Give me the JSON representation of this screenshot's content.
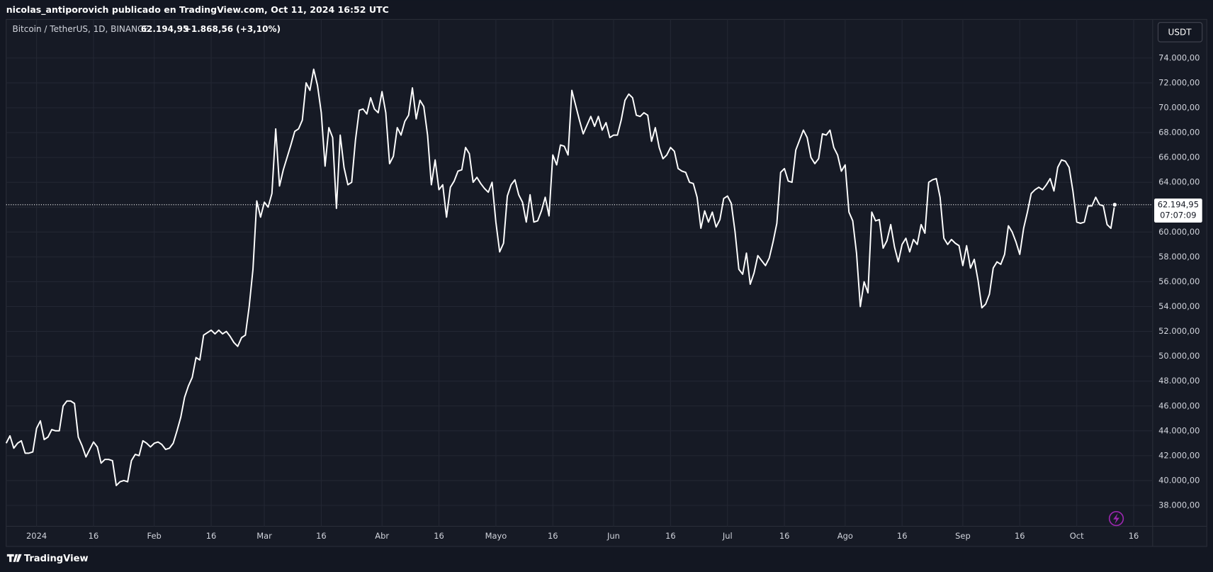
{
  "header": "nicolas_antiporovich publicado en TradingView.com, Oct 11, 2024 16:52 UTC",
  "currency_button": "USDT",
  "countdown": "07:07:09",
  "brand": "TradingView",
  "chart_data": {
    "type": "line",
    "legend": {
      "price": "62.194,95",
      "change": "+1.868,56 (+3,10%)"
    },
    "grid": true,
    "ylim": [
      34760,
      77110
    ],
    "yticks": [
      {
        "value": 38000,
        "label": "38.000,00"
      },
      {
        "value": 40000,
        "label": "40.000,00"
      },
      {
        "value": 42000,
        "label": "42.000,00"
      },
      {
        "value": 44000,
        "label": "44.000,00"
      },
      {
        "value": 46000,
        "label": "46.000,00"
      },
      {
        "value": 48000,
        "label": "48.000,00"
      },
      {
        "value": 50000,
        "label": "50.000,00"
      },
      {
        "value": 52000,
        "label": "52.000,00"
      },
      {
        "value": 54000,
        "label": "54.000,00"
      },
      {
        "value": 56000,
        "label": "56.000,00"
      },
      {
        "value": 58000,
        "label": "58.000,00"
      },
      {
        "value": 60000,
        "label": "60.000,00"
      },
      {
        "value": 62000,
        "label": "62.000,00"
      },
      {
        "value": 64000,
        "label": "64.000,00"
      },
      {
        "value": 66000,
        "label": "66.000,00"
      },
      {
        "value": 68000,
        "label": "68.000,00"
      },
      {
        "value": 70000,
        "label": "70.000,00"
      },
      {
        "value": 72000,
        "label": "72.000,00"
      },
      {
        "value": 74000,
        "label": "74.000,00"
      }
    ],
    "xlim": [
      "2023-12-24",
      "2024-10-21"
    ],
    "xticks": [
      {
        "value": "2024-01-01",
        "label": "2024"
      },
      {
        "value": "2024-01-16",
        "label": "16"
      },
      {
        "value": "2024-02-01",
        "label": "Feb"
      },
      {
        "value": "2024-02-16",
        "label": "16"
      },
      {
        "value": "2024-03-01",
        "label": "Mar"
      },
      {
        "value": "2024-03-16",
        "label": "16"
      },
      {
        "value": "2024-04-01",
        "label": "Abr"
      },
      {
        "value": "2024-04-16",
        "label": "16"
      },
      {
        "value": "2024-05-01",
        "label": "Mayo"
      },
      {
        "value": "2024-05-16",
        "label": "16"
      },
      {
        "value": "2024-06-01",
        "label": "Jun"
      },
      {
        "value": "2024-06-16",
        "label": "16"
      },
      {
        "value": "2024-07-01",
        "label": "Jul"
      },
      {
        "value": "2024-07-16",
        "label": "16"
      },
      {
        "value": "2024-08-01",
        "label": "Ago"
      },
      {
        "value": "2024-08-16",
        "label": "16"
      },
      {
        "value": "2024-09-01",
        "label": "Sep"
      },
      {
        "value": "2024-09-16",
        "label": "16"
      },
      {
        "value": "2024-10-01",
        "label": "Oct"
      },
      {
        "value": "2024-10-16",
        "label": "16"
      }
    ],
    "x": [
      "2023-12-24",
      "2023-12-25",
      "2023-12-26",
      "2023-12-27",
      "2023-12-28",
      "2023-12-29",
      "2023-12-30",
      "2023-12-31",
      "2024-01-01",
      "2024-01-02",
      "2024-01-03",
      "2024-01-04",
      "2024-01-05",
      "2024-01-06",
      "2024-01-07",
      "2024-01-08",
      "2024-01-09",
      "2024-01-10",
      "2024-01-11",
      "2024-01-12",
      "2024-01-13",
      "2024-01-14",
      "2024-01-15",
      "2024-01-16",
      "2024-01-17",
      "2024-01-18",
      "2024-01-19",
      "2024-01-20",
      "2024-01-21",
      "2024-01-22",
      "2024-01-23",
      "2024-01-24",
      "2024-01-25",
      "2024-01-26",
      "2024-01-27",
      "2024-01-28",
      "2024-01-29",
      "2024-01-30",
      "2024-01-31",
      "2024-02-01",
      "2024-02-02",
      "2024-02-03",
      "2024-02-04",
      "2024-02-05",
      "2024-02-06",
      "2024-02-07",
      "2024-02-08",
      "2024-02-09",
      "2024-02-10",
      "2024-02-11",
      "2024-02-12",
      "2024-02-13",
      "2024-02-14",
      "2024-02-15",
      "2024-02-16",
      "2024-02-17",
      "2024-02-18",
      "2024-02-19",
      "2024-02-20",
      "2024-02-21",
      "2024-02-22",
      "2024-02-23",
      "2024-02-24",
      "2024-02-25",
      "2024-02-26",
      "2024-02-27",
      "2024-02-28",
      "2024-02-29",
      "2024-03-01",
      "2024-03-02",
      "2024-03-03",
      "2024-03-04",
      "2024-03-05",
      "2024-03-06",
      "2024-03-07",
      "2024-03-08",
      "2024-03-09",
      "2024-03-10",
      "2024-03-11",
      "2024-03-12",
      "2024-03-13",
      "2024-03-14",
      "2024-03-15",
      "2024-03-16",
      "2024-03-17",
      "2024-03-18",
      "2024-03-19",
      "2024-03-20",
      "2024-03-21",
      "2024-03-22",
      "2024-03-23",
      "2024-03-24",
      "2024-03-25",
      "2024-03-26",
      "2024-03-27",
      "2024-03-28",
      "2024-03-29",
      "2024-03-30",
      "2024-03-31",
      "2024-04-01",
      "2024-04-02",
      "2024-04-03",
      "2024-04-04",
      "2024-04-05",
      "2024-04-06",
      "2024-04-07",
      "2024-04-08",
      "2024-04-09",
      "2024-04-10",
      "2024-04-11",
      "2024-04-12",
      "2024-04-13",
      "2024-04-14",
      "2024-04-15",
      "2024-04-16",
      "2024-04-17",
      "2024-04-18",
      "2024-04-19",
      "2024-04-20",
      "2024-04-21",
      "2024-04-22",
      "2024-04-23",
      "2024-04-24",
      "2024-04-25",
      "2024-04-26",
      "2024-04-27",
      "2024-04-28",
      "2024-04-29",
      "2024-04-30",
      "2024-05-01",
      "2024-05-02",
      "2024-05-03",
      "2024-05-04",
      "2024-05-05",
      "2024-05-06",
      "2024-05-07",
      "2024-05-08",
      "2024-05-09",
      "2024-05-10",
      "2024-05-11",
      "2024-05-12",
      "2024-05-13",
      "2024-05-14",
      "2024-05-15",
      "2024-05-16",
      "2024-05-17",
      "2024-05-18",
      "2024-05-19",
      "2024-05-20",
      "2024-05-21",
      "2024-05-22",
      "2024-05-23",
      "2024-05-24",
      "2024-05-25",
      "2024-05-26",
      "2024-05-27",
      "2024-05-28",
      "2024-05-29",
      "2024-05-30",
      "2024-05-31",
      "2024-06-01",
      "2024-06-02",
      "2024-06-03",
      "2024-06-04",
      "2024-06-05",
      "2024-06-06",
      "2024-06-07",
      "2024-06-08",
      "2024-06-09",
      "2024-06-10",
      "2024-06-11",
      "2024-06-12",
      "2024-06-13",
      "2024-06-14",
      "2024-06-15",
      "2024-06-16",
      "2024-06-17",
      "2024-06-18",
      "2024-06-19",
      "2024-06-20",
      "2024-06-21",
      "2024-06-22",
      "2024-06-23",
      "2024-06-24",
      "2024-06-25",
      "2024-06-26",
      "2024-06-27",
      "2024-06-28",
      "2024-06-29",
      "2024-06-30",
      "2024-07-01",
      "2024-07-02",
      "2024-07-03",
      "2024-07-04",
      "2024-07-05",
      "2024-07-06",
      "2024-07-07",
      "2024-07-08",
      "2024-07-09",
      "2024-07-10",
      "2024-07-11",
      "2024-07-12",
      "2024-07-13",
      "2024-07-14",
      "2024-07-15",
      "2024-07-16",
      "2024-07-17",
      "2024-07-18",
      "2024-07-19",
      "2024-07-20",
      "2024-07-21",
      "2024-07-22",
      "2024-07-23",
      "2024-07-24",
      "2024-07-25",
      "2024-07-26",
      "2024-07-27",
      "2024-07-28",
      "2024-07-29",
      "2024-07-30",
      "2024-07-31",
      "2024-08-01",
      "2024-08-02",
      "2024-08-03",
      "2024-08-04",
      "2024-08-05",
      "2024-08-06",
      "2024-08-07",
      "2024-08-08",
      "2024-08-09",
      "2024-08-10",
      "2024-08-11",
      "2024-08-12",
      "2024-08-13",
      "2024-08-14",
      "2024-08-15",
      "2024-08-16",
      "2024-08-17",
      "2024-08-18",
      "2024-08-19",
      "2024-08-20",
      "2024-08-21",
      "2024-08-22",
      "2024-08-23",
      "2024-08-24",
      "2024-08-25",
      "2024-08-26",
      "2024-08-27",
      "2024-08-28",
      "2024-08-29",
      "2024-08-30",
      "2024-08-31",
      "2024-09-01",
      "2024-09-02",
      "2024-09-03",
      "2024-09-04",
      "2024-09-05",
      "2024-09-06",
      "2024-09-07",
      "2024-09-08",
      "2024-09-09",
      "2024-09-10",
      "2024-09-11",
      "2024-09-12",
      "2024-09-13",
      "2024-09-14",
      "2024-09-15",
      "2024-09-16",
      "2024-09-17",
      "2024-09-18",
      "2024-09-19",
      "2024-09-20",
      "2024-09-21",
      "2024-09-22",
      "2024-09-23",
      "2024-09-24",
      "2024-09-25",
      "2024-09-26",
      "2024-09-27",
      "2024-09-28",
      "2024-09-29",
      "2024-09-30",
      "2024-10-01",
      "2024-10-02",
      "2024-10-03",
      "2024-10-04",
      "2024-10-05",
      "2024-10-06",
      "2024-10-07",
      "2024-10-08",
      "2024-10-09",
      "2024-10-10",
      "2024-10-11"
    ],
    "series": [
      {
        "name": "Bitcoin / TetherUS, 1D, BINANCE",
        "color": "#ffffff",
        "values": [
          43000,
          43600,
          42600,
          43000,
          43200,
          42200,
          42200,
          42300,
          44200,
          44800,
          43300,
          43500,
          44100,
          44000,
          44000,
          46000,
          46400,
          46400,
          46200,
          43500,
          42800,
          41900,
          42500,
          43100,
          42700,
          41400,
          41700,
          41700,
          41600,
          39600,
          39900,
          40000,
          39900,
          41600,
          42100,
          42000,
          43200,
          43000,
          42700,
          43000,
          43100,
          42900,
          42500,
          42600,
          43000,
          44000,
          45100,
          46700,
          47600,
          48300,
          49900,
          49700,
          51700,
          51900,
          52100,
          51800,
          52100,
          51800,
          52000,
          51600,
          51100,
          50800,
          51500,
          51700,
          54000,
          57000,
          62500,
          61200,
          62400,
          62000,
          63100,
          68300,
          63700,
          65000,
          66000,
          67000,
          68100,
          68300,
          69000,
          72000,
          71400,
          73100,
          71800,
          69600,
          65300,
          68400,
          67600,
          61900,
          67800,
          65200,
          63800,
          64000,
          67400,
          69800,
          69900,
          69500,
          70800,
          69900,
          69600,
          71300,
          69600,
          65500,
          66100,
          68400,
          67800,
          68900,
          69400,
          71600,
          69100,
          70600,
          70100,
          67800,
          63800,
          65800,
          63400,
          63800,
          61200,
          63600,
          64100,
          64900,
          65000,
          66800,
          66300,
          64000,
          64400,
          63900,
          63500,
          63200,
          64000,
          60800,
          58400,
          59100,
          62900,
          63800,
          64200,
          63000,
          62400,
          60800,
          63000,
          60800,
          60900,
          61700,
          62800,
          61300,
          66200,
          65400,
          67000,
          66900,
          66200,
          71400,
          70200,
          69000,
          67900,
          68600,
          69300,
          68500,
          69300,
          68200,
          68800,
          67600,
          67800,
          67800,
          69000,
          70600,
          71100,
          70800,
          69400,
          69300,
          69600,
          69400,
          67300,
          68400,
          66800,
          65900,
          66200,
          66800,
          66500,
          65100,
          64900,
          64800,
          64000,
          63900,
          62800,
          60300,
          61700,
          60800,
          61600,
          60400,
          61000,
          62700,
          62900,
          62300,
          60000,
          57000,
          56600,
          58300,
          55800,
          56700,
          58100,
          57700,
          57300,
          57900,
          59200,
          60700,
          64800,
          65100,
          64100,
          64000,
          66600,
          67400,
          68200,
          67600,
          66000,
          65500,
          65900,
          67900,
          67800,
          68200,
          66800,
          66200,
          64900,
          65400,
          61600,
          60900,
          58300,
          54000,
          56000,
          55100,
          61600,
          60900,
          61000,
          58700,
          59300,
          60600,
          58800,
          57600,
          59000,
          59500,
          58400,
          59400,
          59000,
          60600,
          59900,
          64000,
          64200,
          64300,
          62800,
          59500,
          59000,
          59400,
          59100,
          58900,
          57300,
          58900,
          57100,
          57800,
          56100,
          53900,
          54200,
          55000,
          57100,
          57600,
          57400,
          58200,
          60500,
          60000,
          59200,
          58200,
          60300,
          61600,
          63100,
          63400,
          63600,
          63400,
          63800,
          64300,
          63300,
          65200,
          65800,
          65700,
          65200,
          63300,
          60800,
          60700,
          60800,
          62100,
          62100,
          62800,
          62200,
          62100,
          60600,
          60300,
          62194.95
        ]
      }
    ]
  }
}
